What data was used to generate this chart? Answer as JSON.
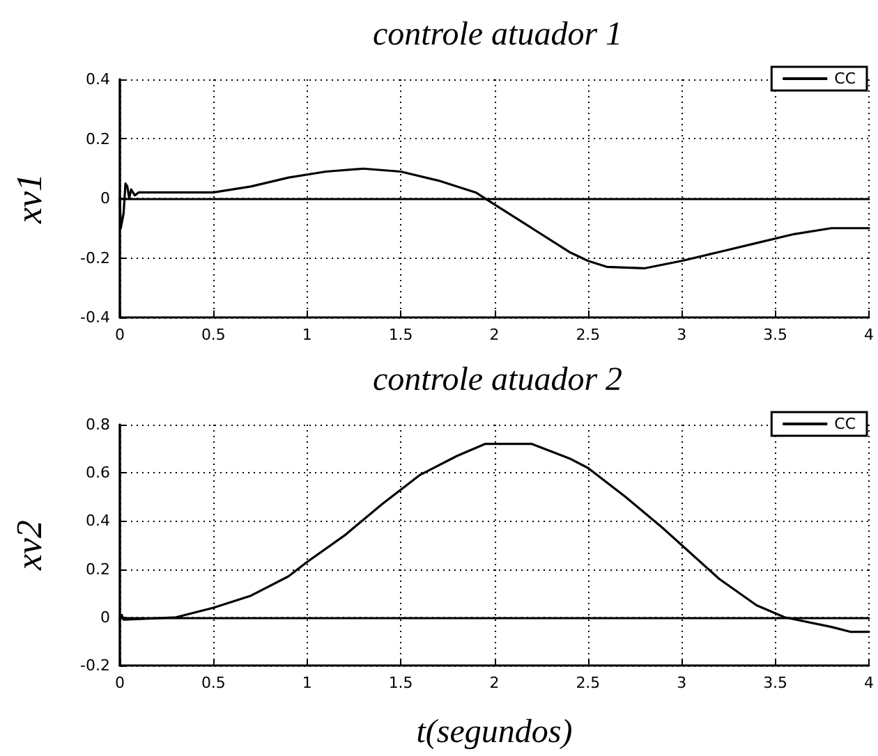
{
  "chart_data": [
    {
      "type": "line",
      "title": "controle atuador 1",
      "ylabel": "xv1",
      "xlim": [
        0,
        4
      ],
      "xticks": [
        0,
        0.5,
        1,
        1.5,
        2,
        2.5,
        3,
        3.5,
        4
      ],
      "ylim": [
        -0.4,
        0.4
      ],
      "yticks": [
        -0.4,
        -0.2,
        0,
        0.2,
        0.4
      ],
      "grid": true,
      "legend": "top right",
      "marker": "none",
      "line_style": "solid",
      "series": [
        {
          "name": "CC",
          "color": "#000000",
          "x": [
            0,
            0.005,
            0.02,
            0.03,
            0.04,
            0.05,
            0.06,
            0.08,
            0.1,
            0.3,
            0.5,
            0.7,
            0.9,
            1.1,
            1.3,
            1.5,
            1.7,
            1.9,
            2.0,
            2.2,
            2.4,
            2.5,
            2.6,
            2.8,
            3.0,
            3.2,
            3.4,
            3.6,
            3.8,
            4.0
          ],
          "values": [
            0,
            -0.1,
            -0.05,
            0.05,
            0.04,
            0.0,
            0.03,
            0.01,
            0.02,
            0.02,
            0.02,
            0.04,
            0.07,
            0.09,
            0.1,
            0.09,
            0.06,
            0.02,
            -0.02,
            -0.1,
            -0.18,
            -0.21,
            -0.23,
            -0.235,
            -0.21,
            -0.18,
            -0.15,
            -0.12,
            -0.1,
            -0.1
          ]
        }
      ]
    },
    {
      "type": "line",
      "title": "controle atuador 2",
      "ylabel": "xv2",
      "xlabel": "t(segundos)",
      "xlim": [
        0,
        4
      ],
      "xticks": [
        0,
        0.5,
        1,
        1.5,
        2,
        2.5,
        3,
        3.5,
        4
      ],
      "ylim": [
        -0.2,
        0.8
      ],
      "yticks": [
        -0.2,
        0,
        0.2,
        0.4,
        0.6,
        0.8
      ],
      "grid": true,
      "legend": "top right",
      "marker": "none",
      "line_style": "solid",
      "series": [
        {
          "name": "CC",
          "color": "#000000",
          "x": [
            0,
            0.01,
            0.02,
            0.3,
            0.5,
            0.7,
            0.9,
            1.0,
            1.2,
            1.4,
            1.6,
            1.8,
            1.95,
            2.2,
            2.4,
            2.5,
            2.7,
            2.9,
            3.0,
            3.2,
            3.4,
            3.55,
            3.8,
            3.9,
            4.0
          ],
          "values": [
            -0.01,
            0.01,
            -0.01,
            0,
            0.04,
            0.09,
            0.17,
            0.23,
            0.34,
            0.47,
            0.59,
            0.67,
            0.72,
            0.72,
            0.66,
            0.62,
            0.5,
            0.37,
            0.3,
            0.16,
            0.05,
            0,
            -0.04,
            -0.06,
            -0.06
          ]
        }
      ]
    }
  ]
}
